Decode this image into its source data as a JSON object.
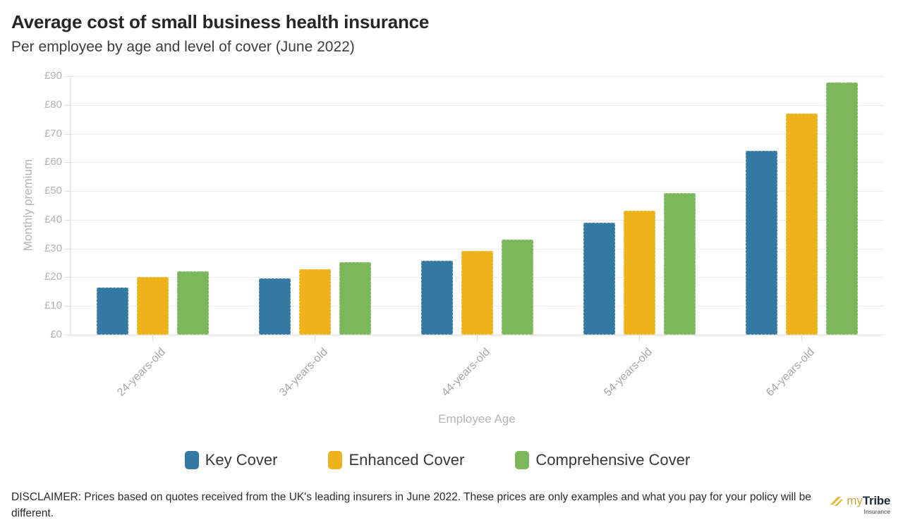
{
  "header": {
    "title": "Average cost of small business health insurance",
    "subtitle": "Per employee by age and level of cover (June 2022)"
  },
  "chart_data": {
    "type": "bar",
    "title": "Average cost of small business health insurance",
    "subtitle": "Per employee by age and level of cover (June 2022)",
    "categories": [
      "24-years-old",
      "34-years-old",
      "44-years-old",
      "54-years-old",
      "64-years-old"
    ],
    "series": [
      {
        "name": "Key Cover",
        "color": "#3379a1",
        "values": [
          16.5,
          19.5,
          25.7,
          39.1,
          64.1
        ]
      },
      {
        "name": "Enhanced Cover",
        "color": "#edb21c",
        "values": [
          20.0,
          22.7,
          29.3,
          43.2,
          77.1
        ]
      },
      {
        "name": "Comprehensive Cover",
        "color": "#7db75b",
        "values": [
          22.0,
          25.2,
          33.0,
          49.4,
          87.8
        ]
      }
    ],
    "xlabel": "Employee Age",
    "ylabel": "Monthly premium",
    "ylim": [
      0,
      90
    ],
    "ytick_step": 10,
    "ytick_labels": [
      "£0",
      "£10",
      "£20",
      "£30",
      "£40",
      "£50",
      "£60",
      "£70",
      "£80",
      "£90"
    ],
    "grid": true,
    "legend_position": "bottom"
  },
  "footer": {
    "disclaimer": "DISCLAIMER: Prices based on quotes received from the UK's leading insurers in June 2022. These prices are only examples and what you pay for your policy will be different.",
    "logo": {
      "my": "my",
      "tribe": "Tribe",
      "sub": "Insurance"
    }
  }
}
